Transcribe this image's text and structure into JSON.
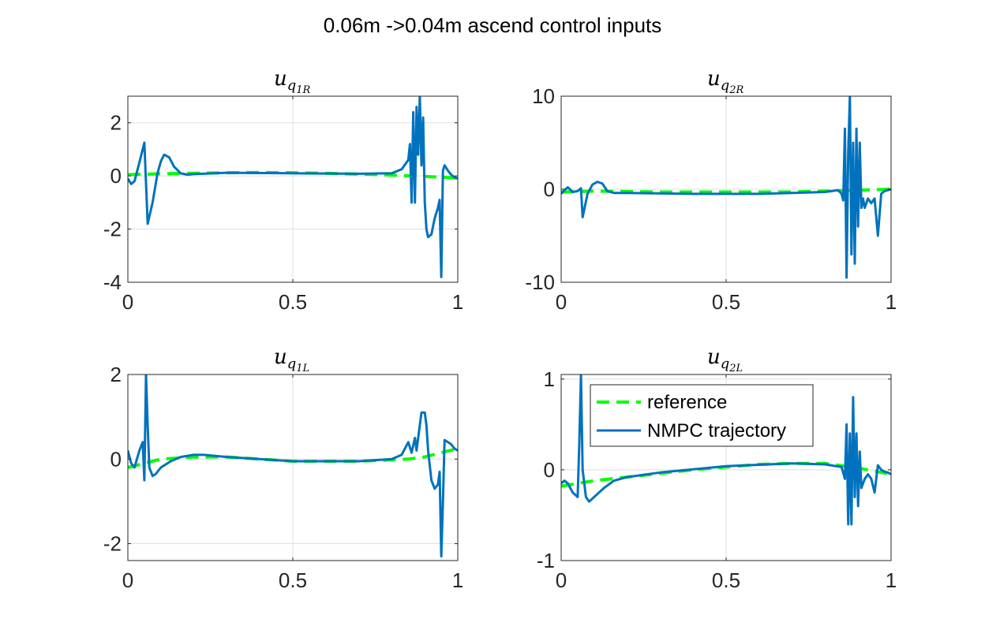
{
  "figure": {
    "title": "0.06m ->0.04m ascend control inputs",
    "legend": {
      "placement": "upper-left of bottom-right subplot",
      "entries": [
        {
          "label": "reference",
          "style": "dashed",
          "color": "#00ff00"
        },
        {
          "label": "NMPC trajectory",
          "style": "solid",
          "color": "#0072bd"
        }
      ]
    }
  },
  "chart_data": [
    {
      "type": "line",
      "title": "u",
      "title_sub": "q",
      "title_subsub": "1R",
      "xlim": [
        0,
        1
      ],
      "ylim": [
        -4,
        3
      ],
      "xticks": [
        "0",
        "0.5",
        "1"
      ],
      "yticks": [
        "2",
        "0",
        "-2",
        "-4"
      ],
      "ytick_values": [
        2,
        0,
        -2,
        -4
      ],
      "xtick_values": [
        0,
        0.5,
        1
      ],
      "grid": true,
      "series": [
        {
          "name": "reference",
          "color": "#00ff00",
          "dash": true,
          "x": [
            0,
            0.1,
            0.2,
            0.3,
            0.4,
            0.5,
            0.6,
            0.7,
            0.8,
            0.9,
            1.0
          ],
          "y": [
            0.05,
            0.08,
            0.1,
            0.12,
            0.13,
            0.12,
            0.1,
            0.07,
            0.03,
            -0.02,
            -0.08
          ]
        },
        {
          "name": "NMPC trajectory",
          "color": "#0072bd",
          "dash": false,
          "x": [
            0,
            0.01,
            0.02,
            0.035,
            0.05,
            0.06,
            0.075,
            0.09,
            0.1,
            0.11,
            0.125,
            0.14,
            0.16,
            0.18,
            0.2,
            0.3,
            0.5,
            0.7,
            0.8,
            0.83,
            0.85,
            0.855,
            0.86,
            0.865,
            0.87,
            0.875,
            0.88,
            0.885,
            0.89,
            0.895,
            0.9,
            0.905,
            0.91,
            0.92,
            0.93,
            0.94,
            0.945,
            0.95,
            0.955,
            0.96,
            0.97,
            0.98,
            0.99,
            1.0
          ],
          "y": [
            -0.1,
            -0.3,
            -0.2,
            0.5,
            1.25,
            -1.8,
            -1.0,
            0.1,
            0.55,
            0.8,
            0.7,
            0.35,
            0.1,
            0.05,
            0.07,
            0.12,
            0.1,
            0.08,
            0.1,
            0.25,
            0.6,
            1.2,
            -1.0,
            2.4,
            -1.0,
            2.6,
            0.8,
            3.0,
            0.4,
            2.2,
            -1.0,
            -2.0,
            -2.3,
            -2.2,
            -1.6,
            -1.2,
            -0.9,
            -3.8,
            0.2,
            0.4,
            0.2,
            0.05,
            -0.05,
            -0.1
          ]
        }
      ]
    },
    {
      "type": "line",
      "title": "u",
      "title_sub": "q",
      "title_subsub": "2R",
      "xlim": [
        0,
        1
      ],
      "ylim": [
        -10,
        10
      ],
      "xticks": [
        "0",
        "0.5",
        "1"
      ],
      "yticks": [
        "10",
        "0",
        "-10"
      ],
      "ytick_values": [
        10,
        0,
        -10
      ],
      "xtick_values": [
        0,
        0.5,
        1
      ],
      "grid": true,
      "series": [
        {
          "name": "reference",
          "color": "#00ff00",
          "dash": true,
          "x": [
            0,
            0.1,
            0.2,
            0.3,
            0.4,
            0.5,
            0.6,
            0.7,
            0.8,
            0.9,
            1.0
          ],
          "y": [
            -0.3,
            -0.2,
            -0.25,
            -0.3,
            -0.3,
            -0.3,
            -0.3,
            -0.3,
            -0.2,
            -0.1,
            0.0
          ]
        },
        {
          "name": "NMPC trajectory",
          "color": "#0072bd",
          "dash": false,
          "x": [
            0,
            0.01,
            0.02,
            0.035,
            0.05,
            0.06,
            0.065,
            0.08,
            0.095,
            0.11,
            0.125,
            0.14,
            0.16,
            0.2,
            0.4,
            0.6,
            0.8,
            0.84,
            0.85,
            0.855,
            0.86,
            0.865,
            0.87,
            0.875,
            0.88,
            0.885,
            0.89,
            0.895,
            0.9,
            0.905,
            0.91,
            0.915,
            0.92,
            0.93,
            0.94,
            0.95,
            0.96,
            0.97,
            0.98,
            0.99,
            1.0
          ],
          "y": [
            -0.5,
            -0.1,
            0.2,
            -0.3,
            -0.2,
            0.1,
            -3.0,
            -0.5,
            0.5,
            0.8,
            0.6,
            -0.2,
            -0.4,
            -0.4,
            -0.5,
            -0.5,
            -0.3,
            -0.1,
            -0.5,
            -1.2,
            6.5,
            -9.5,
            4.0,
            10.0,
            -7.0,
            5.0,
            -8.0,
            6.5,
            -4.0,
            5.0,
            -2.0,
            -1.0,
            -2.0,
            -1.0,
            -1.5,
            -1.0,
            -5.0,
            -0.5,
            -0.2,
            -0.1,
            0.0
          ]
        }
      ]
    },
    {
      "type": "line",
      "title": "u",
      "title_sub": "q",
      "title_subsub": "1L",
      "xlim": [
        0,
        1
      ],
      "ylim": [
        -2.4,
        2
      ],
      "xticks": [
        "0",
        "0.5",
        "1"
      ],
      "yticks": [
        "2",
        "0",
        "-2"
      ],
      "ytick_values": [
        2,
        0,
        -2
      ],
      "xtick_values": [
        0,
        0.5,
        1
      ],
      "grid": true,
      "series": [
        {
          "name": "reference",
          "color": "#00ff00",
          "dash": true,
          "x": [
            0,
            0.1,
            0.2,
            0.3,
            0.4,
            0.5,
            0.6,
            0.7,
            0.8,
            0.85,
            0.9,
            0.95,
            1.0
          ],
          "y": [
            -0.2,
            0.0,
            0.05,
            0.05,
            0.0,
            -0.05,
            -0.05,
            -0.05,
            -0.02,
            0.0,
            0.05,
            0.15,
            0.25
          ]
        },
        {
          "name": "NMPC trajectory",
          "color": "#0072bd",
          "dash": false,
          "x": [
            0,
            0.01,
            0.02,
            0.035,
            0.045,
            0.05,
            0.055,
            0.06,
            0.065,
            0.075,
            0.085,
            0.1,
            0.13,
            0.16,
            0.2,
            0.23,
            0.3,
            0.5,
            0.7,
            0.8,
            0.83,
            0.85,
            0.86,
            0.87,
            0.875,
            0.88,
            0.885,
            0.89,
            0.9,
            0.905,
            0.91,
            0.92,
            0.93,
            0.94,
            0.945,
            0.95,
            0.955,
            0.96,
            0.97,
            0.98,
            0.99,
            1.0
          ],
          "y": [
            0.2,
            -0.1,
            -0.2,
            0.2,
            0.4,
            -0.5,
            2.0,
            0.8,
            -0.2,
            -0.4,
            -0.35,
            -0.2,
            -0.05,
            0.05,
            0.1,
            0.1,
            0.05,
            -0.05,
            -0.05,
            0.0,
            0.1,
            0.4,
            0.15,
            0.5,
            0.2,
            0.5,
            0.8,
            1.1,
            1.1,
            0.8,
            0.2,
            -0.5,
            -0.7,
            -0.6,
            -0.3,
            -2.3,
            -1.0,
            0.45,
            0.4,
            0.35,
            0.25,
            0.2
          ]
        }
      ]
    },
    {
      "type": "line",
      "title": "u",
      "title_sub": "q",
      "title_subsub": "2L",
      "xlim": [
        0,
        1
      ],
      "ylim": [
        -1,
        1.05
      ],
      "xticks": [
        "0",
        "0.5",
        "1"
      ],
      "yticks": [
        "1",
        "0",
        "-1"
      ],
      "ytick_values": [
        1,
        0,
        -1
      ],
      "xtick_values": [
        0,
        0.5,
        1
      ],
      "grid": true,
      "series": [
        {
          "name": "reference",
          "color": "#00ff00",
          "dash": true,
          "x": [
            0,
            0.1,
            0.2,
            0.3,
            0.4,
            0.5,
            0.6,
            0.7,
            0.8,
            0.9,
            1.0
          ],
          "y": [
            -0.18,
            -0.12,
            -0.08,
            -0.04,
            0.0,
            0.03,
            0.06,
            0.07,
            0.07,
            0.02,
            -0.05
          ]
        },
        {
          "name": "NMPC trajectory",
          "color": "#0072bd",
          "dash": false,
          "x": [
            0,
            0.01,
            0.02,
            0.035,
            0.05,
            0.055,
            0.06,
            0.065,
            0.075,
            0.085,
            0.1,
            0.13,
            0.16,
            0.2,
            0.3,
            0.5,
            0.7,
            0.8,
            0.85,
            0.86,
            0.865,
            0.87,
            0.875,
            0.88,
            0.885,
            0.89,
            0.895,
            0.9,
            0.905,
            0.91,
            0.92,
            0.93,
            0.94,
            0.95,
            0.96,
            0.97,
            0.98,
            0.99,
            1.0
          ],
          "y": [
            -0.15,
            -0.12,
            -0.15,
            -0.25,
            -0.3,
            0.3,
            1.05,
            0.0,
            -0.3,
            -0.35,
            -0.3,
            -0.2,
            -0.12,
            -0.08,
            -0.03,
            0.04,
            0.07,
            0.06,
            0.03,
            -0.1,
            0.5,
            -0.6,
            0.4,
            -0.6,
            0.8,
            -0.3,
            0.4,
            -0.4,
            0.2,
            -0.2,
            -0.1,
            -0.05,
            -0.1,
            -0.25,
            0.05,
            0.0,
            -0.02,
            -0.03,
            -0.05
          ]
        }
      ]
    }
  ]
}
